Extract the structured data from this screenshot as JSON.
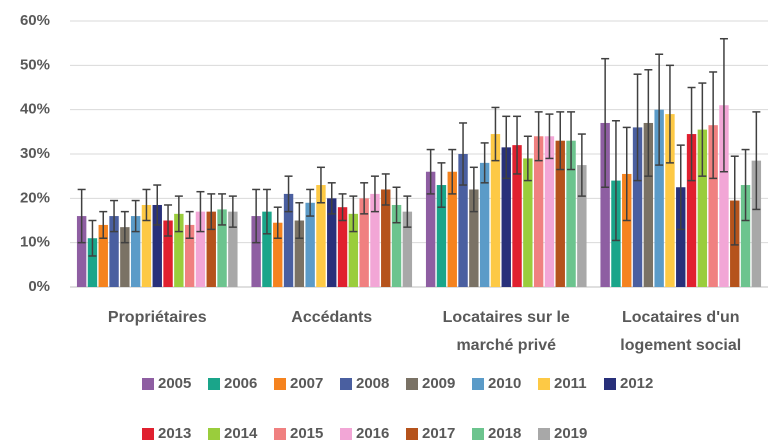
{
  "chart_data": {
    "type": "bar",
    "categories": [
      "Propriétaires",
      "Accédants",
      "Locataires sur le marché privé",
      "Locataires d'un logement social"
    ],
    "series": [
      {
        "name": "2005",
        "color": "#8e5ea2",
        "values": [
          16,
          16,
          26,
          37
        ],
        "errors": [
          6,
          6,
          5,
          14.5
        ]
      },
      {
        "name": "2006",
        "color": "#1aa58a",
        "values": [
          11,
          17,
          23,
          24
        ],
        "errors": [
          4,
          5,
          5,
          13.5
        ]
      },
      {
        "name": "2007",
        "color": "#f5831f",
        "values": [
          14,
          14.5,
          26,
          25.5
        ],
        "errors": [
          3,
          3.5,
          5,
          10.5
        ]
      },
      {
        "name": "2008",
        "color": "#4a5fa0",
        "values": [
          16,
          21,
          30,
          36
        ],
        "errors": [
          3.5,
          4,
          7,
          12
        ]
      },
      {
        "name": "2009",
        "color": "#7a7265",
        "values": [
          13.5,
          15,
          22,
          37
        ],
        "errors": [
          3.5,
          4,
          5,
          12
        ]
      },
      {
        "name": "2010",
        "color": "#5b9bc8",
        "values": [
          16,
          19,
          28,
          40
        ],
        "errors": [
          3.5,
          3,
          4.5,
          12.5
        ]
      },
      {
        "name": "2011",
        "color": "#fdc945",
        "values": [
          18.5,
          23,
          34.5,
          39
        ],
        "errors": [
          3.5,
          4,
          6,
          11
        ]
      },
      {
        "name": "2012",
        "color": "#28307a",
        "values": [
          18.5,
          20,
          31.5,
          22.5
        ],
        "errors": [
          4.5,
          3.5,
          7,
          9.5
        ]
      },
      {
        "name": "2013",
        "color": "#e0202f",
        "values": [
          15,
          18,
          32,
          34.5
        ],
        "errors": [
          3.5,
          3,
          6.5,
          10.5
        ]
      },
      {
        "name": "2014",
        "color": "#9acd3c",
        "values": [
          16.5,
          16.5,
          29,
          35.5
        ],
        "errors": [
          4,
          4,
          5,
          10.5
        ]
      },
      {
        "name": "2015",
        "color": "#f08080",
        "values": [
          14,
          20,
          34,
          36.5
        ],
        "errors": [
          3,
          3.5,
          5.5,
          12
        ]
      },
      {
        "name": "2016",
        "color": "#f2a6d6",
        "values": [
          17,
          21,
          34,
          41
        ],
        "errors": [
          4.5,
          4,
          5,
          15
        ]
      },
      {
        "name": "2017",
        "color": "#b5531c",
        "values": [
          17,
          22,
          33,
          19.5
        ],
        "errors": [
          4,
          3.5,
          6.5,
          10
        ]
      },
      {
        "name": "2018",
        "color": "#6cc48e",
        "values": [
          17.5,
          18.5,
          33,
          23
        ],
        "errors": [
          3.5,
          4,
          6.5,
          8
        ]
      },
      {
        "name": "2019",
        "color": "#a8a8a8",
        "values": [
          17,
          17,
          27.5,
          28.5
        ],
        "errors": [
          3.5,
          3.5,
          7,
          11
        ]
      }
    ],
    "ylim": [
      0,
      60
    ],
    "yticks": [
      {
        "value": 0,
        "label": "0%"
      },
      {
        "value": 10,
        "label": "10%"
      },
      {
        "value": 20,
        "label": "20%"
      },
      {
        "value": 30,
        "label": "30%"
      },
      {
        "value": 40,
        "label": "40%"
      },
      {
        "value": 50,
        "label": "50%"
      },
      {
        "value": 60,
        "label": "60%"
      }
    ],
    "grid": true
  }
}
